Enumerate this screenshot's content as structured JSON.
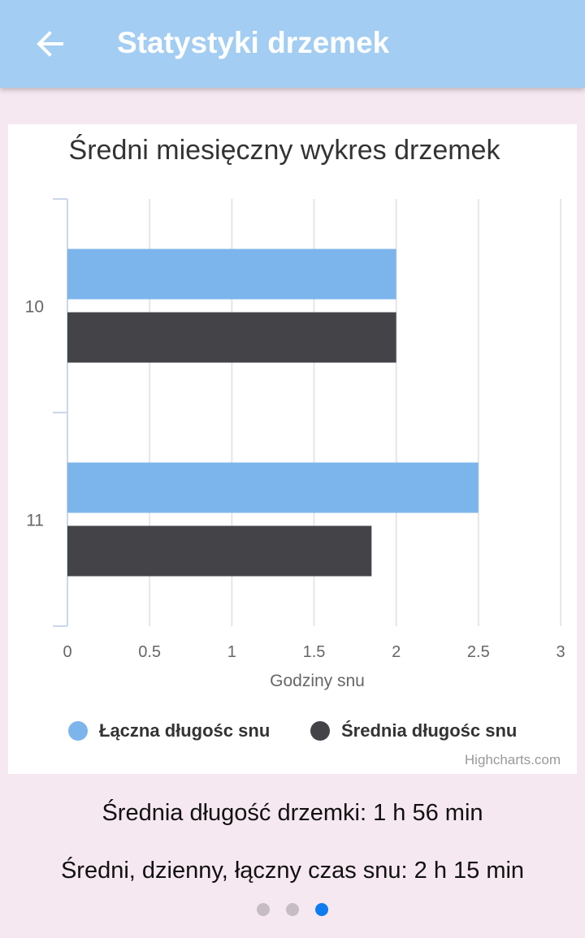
{
  "appbar": {
    "title": "Statystyki drzemek",
    "back_icon": "arrow-back-icon",
    "color": "#a3cdf2"
  },
  "chart_data": {
    "type": "bar",
    "orientation": "horizontal",
    "title": "Średni miesięczny wykres drzemek",
    "categories": [
      "10",
      "11"
    ],
    "series": [
      {
        "name": "Łączna długośc snu",
        "color": "#7cb5ec",
        "values": [
          2,
          2.5
        ]
      },
      {
        "name": "Średnia długośc snu",
        "color": "#434348",
        "values": [
          2,
          1.85
        ]
      }
    ],
    "xlabel": "Godziny snu",
    "xlim": [
      0,
      3
    ],
    "ticks": [
      "0",
      "0.5",
      "1",
      "1.5",
      "2",
      "2.5",
      "3"
    ],
    "grid": true,
    "legend_position": "bottom",
    "credits": "Highcharts.com"
  },
  "summary": {
    "avg_nap": "Średnia długość drzemki: 1 h 56 min",
    "avg_daily": "Średni, dzienny, łączny czas snu: 2 h 15 min"
  },
  "pager": {
    "pages": 3,
    "active_index": 2
  }
}
